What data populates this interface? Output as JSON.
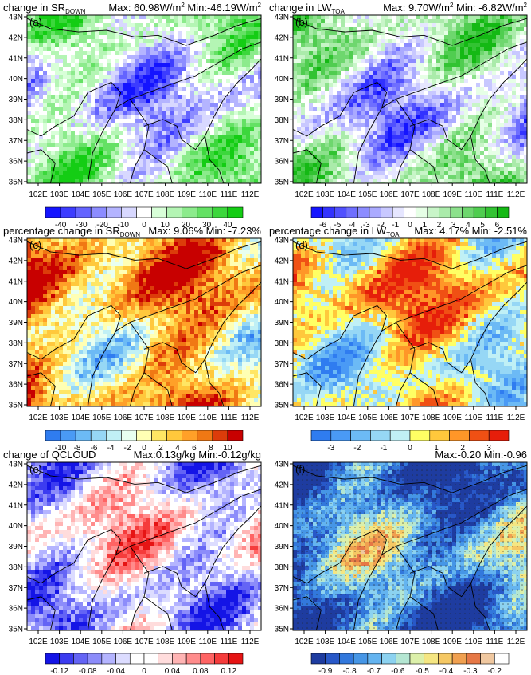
{
  "figure": {
    "lat_ticks": [
      "43N",
      "42N",
      "41N",
      "40N",
      "39N",
      "38N",
      "37N",
      "36N",
      "35N"
    ],
    "lon_ticks": [
      "102E",
      "103E",
      "104E",
      "105E",
      "106E",
      "107E",
      "108E",
      "109E",
      "110E",
      "111E",
      "112E"
    ]
  },
  "panels": [
    {
      "title_main": "change in SR",
      "title_sub": "DOWN",
      "stats": "Max: 60.98W/m",
      "stats_sup": "2",
      "stats2": "  Min:-46.19W/m",
      "stats2_sup": "2",
      "letter": "(a)",
      "colorbar_labels": [
        "-40",
        "-30",
        "-20",
        "-10",
        "0",
        "10",
        "20",
        "30",
        "40"
      ],
      "colors": [
        "#1414ff",
        "#3c3cff",
        "#6464ff",
        "#8c8cff",
        "#b4b4ff",
        "#d8d8ff",
        "#ffffff",
        "#d8ffd8",
        "#b4f5b4",
        "#8ceb8c",
        "#64e164",
        "#3cd73c",
        "#14cd14"
      ]
    },
    {
      "title_main": "change in LW",
      "title_sub": "TOA",
      "stats": "Max:  9.70W/m",
      "stats_sup": "2",
      "stats2": "  Min: -6.82W/m",
      "stats2_sup": "2",
      "letter": "(b)",
      "colorbar_labels": [
        "-6",
        "-5",
        "-4",
        "-3",
        "-2",
        "-1",
        "0",
        "1",
        "2",
        "3",
        "4",
        "5",
        "6"
      ],
      "colors": [
        "#1414ff",
        "#3232ff",
        "#5050ff",
        "#6e6eff",
        "#8c8cff",
        "#aaaaff",
        "#c8c8ff",
        "#e6e6ff",
        "#ffffff",
        "#e6ffe6",
        "#c8f5c8",
        "#aaebaa",
        "#8ce18c",
        "#6ed76e",
        "#50cd50",
        "#32c332",
        "#14b914"
      ]
    },
    {
      "title_main": "percentage change in SR",
      "title_sub": "DOWN",
      "stats": "Max:  9.06%",
      "stats_sup": "",
      "stats2": "  Min: -7.23%",
      "stats2_sup": "",
      "letter": "(c)",
      "colorbar_labels": [
        "-10",
        "-8",
        "-6",
        "-4",
        "-2",
        "0",
        "2",
        "4",
        "6",
        "8",
        "10"
      ],
      "colors": [
        "#2f7cf0",
        "#4a9af5",
        "#6cbaf5",
        "#96d7f5",
        "#c0f0f5",
        "#e8fff0",
        "#ffffb4",
        "#ffe664",
        "#ffc83c",
        "#ffa028",
        "#f07814",
        "#dc3c0a",
        "#c80000"
      ]
    },
    {
      "title_main": "percentage change in LW",
      "title_sub": "TOA",
      "stats": "Max:  4.17%",
      "stats_sup": "",
      "stats2": "  Min: -2.51%",
      "stats2_sup": "",
      "letter": "(d)",
      "colorbar_labels": [
        "-3",
        "-2",
        "-1",
        "0",
        "1",
        "2",
        "3"
      ],
      "colors": [
        "#2f7cf0",
        "#4a9af5",
        "#6cbaf5",
        "#96d7f5",
        "#c0f0f5",
        "#ffff64",
        "#ffc83c",
        "#ff9628",
        "#f05014",
        "#e61e0a"
      ]
    },
    {
      "title_main": "change of QCLOUD",
      "title_sub": "",
      "stats": "Max:0.13g/kg  Min:-0.12g/kg",
      "stats_sup": "",
      "stats2": "",
      "stats2_sup": "",
      "letter": "(e)",
      "colorbar_labels": [
        "-0.12",
        "-0.08",
        "-0.04",
        "0",
        "0.04",
        "0.08",
        "0.12"
      ],
      "colors": [
        "#1414e6",
        "#3c3cf0",
        "#6464f5",
        "#8c8cfa",
        "#b4b4ff",
        "#dcdcff",
        "#ffffff",
        "#ffffff",
        "#ffdcdc",
        "#ffb4b4",
        "#ff8c8c",
        "#ff6464",
        "#f53c3c",
        "#e61414"
      ]
    },
    {
      "title_main": "",
      "title_sub": "",
      "stats": "Max:-0.20  Min:-0.96",
      "stats_sup": "",
      "stats2": "",
      "stats2_sup": "",
      "letter": "(f)",
      "colorbar_labels": [
        "-0.9",
        "-0.8",
        "-0.7",
        "-0.6",
        "-0.5",
        "-0.4",
        "-0.3",
        "-0.2"
      ],
      "colors": [
        "#1e3ca0",
        "#2858c8",
        "#3278dc",
        "#4696e6",
        "#64b4f0",
        "#8cd2f0",
        "#b4e6d2",
        "#dcf0aa",
        "#f5e682",
        "#f5c864",
        "#f0a050",
        "#e67846",
        "#f0c8a0",
        "#ffffff"
      ]
    }
  ],
  "chart_data": [
    {
      "type": "heatmap",
      "title": "change in SR DOWN",
      "max": 60.98,
      "min": -46.19,
      "unit": "W/m2",
      "levels": [
        -40,
        -30,
        -20,
        -10,
        0,
        10,
        20,
        30,
        40
      ]
    },
    {
      "type": "heatmap",
      "title": "change in LW TOA",
      "max": 9.7,
      "min": -6.82,
      "unit": "W/m2",
      "levels": [
        -6,
        -5,
        -4,
        -3,
        -2,
        -1,
        0,
        1,
        2,
        3,
        4,
        5,
        6
      ]
    },
    {
      "type": "heatmap",
      "title": "percentage change in SR DOWN",
      "max": 9.06,
      "min": -7.23,
      "unit": "%",
      "levels": [
        -10,
        -8,
        -6,
        -4,
        -2,
        0,
        2,
        4,
        6,
        8,
        10
      ]
    },
    {
      "type": "heatmap",
      "title": "percentage change in LW TOA",
      "max": 4.17,
      "min": -2.51,
      "unit": "%",
      "levels": [
        -3,
        -2,
        -1,
        0,
        1,
        2,
        3
      ]
    },
    {
      "type": "heatmap",
      "title": "change of QCLOUD",
      "max": 0.13,
      "min": -0.12,
      "unit": "g/kg",
      "levels": [
        -0.12,
        -0.08,
        -0.04,
        0,
        0.04,
        0.08,
        0.12
      ]
    },
    {
      "type": "heatmap",
      "title": "",
      "max": -0.2,
      "min": -0.96,
      "levels": [
        -0.9,
        -0.8,
        -0.7,
        -0.6,
        -0.5,
        -0.4,
        -0.3,
        -0.2
      ]
    }
  ]
}
